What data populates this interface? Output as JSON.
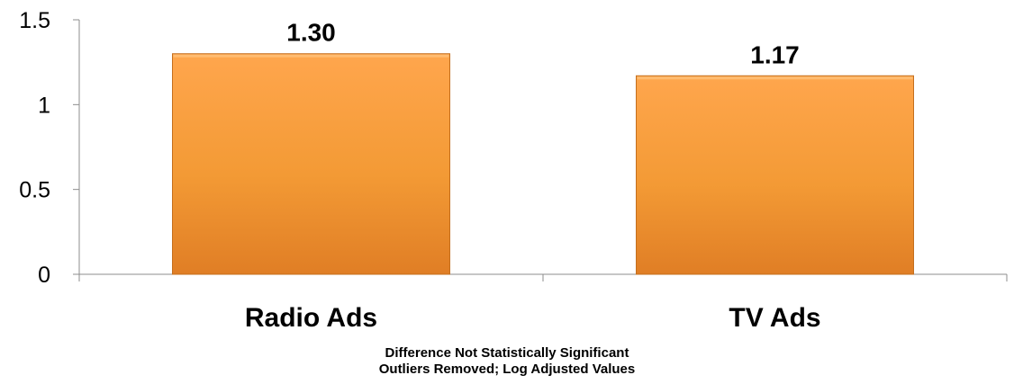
{
  "chart_data": {
    "type": "bar",
    "categories": [
      "Radio Ads",
      "TV Ads"
    ],
    "values": [
      1.3,
      1.17
    ],
    "data_labels": [
      "1.30",
      "1.17"
    ],
    "y_ticks": [
      "0",
      "0.5",
      "1",
      "1.5"
    ],
    "ylim": [
      0,
      1.5
    ],
    "title": "",
    "xlabel": "",
    "ylabel": "",
    "grid": false,
    "legend": "none",
    "bar_color": "#f39a35",
    "bar_color_light": "#ffa64d",
    "bar_color_dark": "#e07e25"
  },
  "notes": {
    "line1": "Difference Not Statistically Significant",
    "line2": "Outliers Removed; Log Adjusted Values"
  }
}
